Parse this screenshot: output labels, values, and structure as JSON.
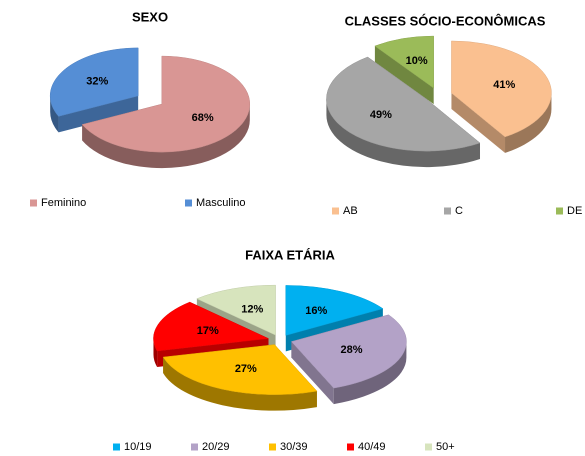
{
  "chart_data": [
    {
      "type": "pie",
      "title": "SEXO",
      "categories": [
        "Feminino",
        "Masculino"
      ],
      "values": [
        68,
        32
      ],
      "value_labels": [
        "68%",
        "32%"
      ],
      "colors": [
        "#d99694",
        "#558ed5"
      ],
      "legend": "bottom"
    },
    {
      "type": "pie",
      "title": "CLASSES SÓCIO-ECONÔMICAS",
      "categories": [
        "AB",
        "C",
        "DE"
      ],
      "values": [
        41,
        49,
        10
      ],
      "value_labels": [
        "41%",
        "49%",
        "10%"
      ],
      "colors": [
        "#fac090",
        "#a6a6a6",
        "#9bbb59"
      ],
      "legend": "bottom"
    },
    {
      "type": "pie",
      "title": "FAIXA ETÁRIA",
      "categories": [
        "10/19",
        "20/29",
        "30/39",
        "40/49",
        "50+"
      ],
      "values": [
        16,
        28,
        27,
        17,
        12
      ],
      "value_labels": [
        "16%",
        "28%",
        "27%",
        "17%",
        "12%"
      ],
      "colors": [
        "#00b0f0",
        "#b3a2c7",
        "#ffc000",
        "#ff0000",
        "#d7e4bd"
      ],
      "legend": "bottom"
    }
  ]
}
